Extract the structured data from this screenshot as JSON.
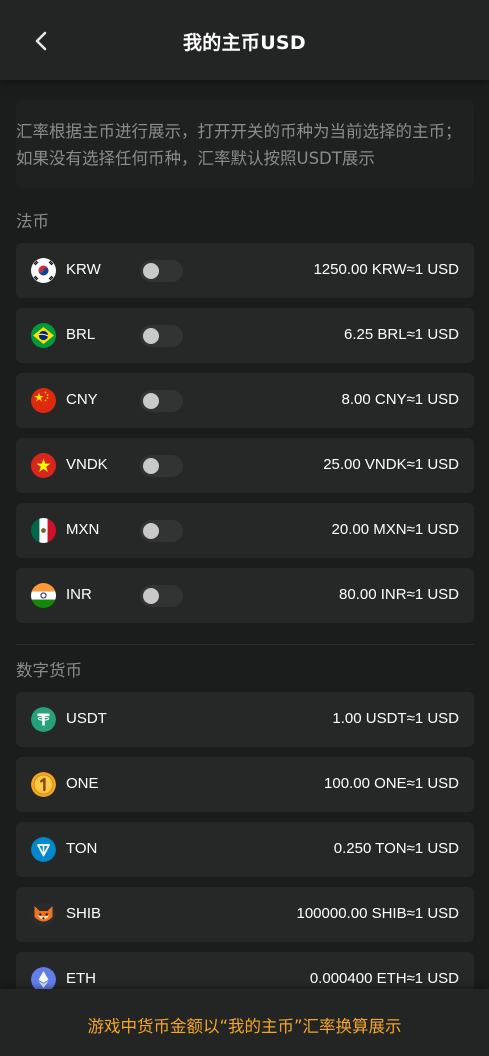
{
  "header": {
    "title": "我的主币USD",
    "back_icon": "chevron-left-icon"
  },
  "description": "汇率根据主币进行展示，打开开关的币种为当前选择的主币；如果没有选择任何币种，汇率默认按照USDT展示",
  "fiat": {
    "label": "法币",
    "items": [
      {
        "code": "KRW",
        "rate": "1250.00 KRW≈1 USD",
        "icon": "korea-flag-icon",
        "enabled": false
      },
      {
        "code": "BRL",
        "rate": "6.25 BRL≈1 USD",
        "icon": "brazil-flag-icon",
        "enabled": false
      },
      {
        "code": "CNY",
        "rate": "8.00 CNY≈1 USD",
        "icon": "china-flag-icon",
        "enabled": false
      },
      {
        "code": "VNDK",
        "rate": "25.00 VNDK≈1 USD",
        "icon": "vietnam-flag-icon",
        "enabled": false
      },
      {
        "code": "MXN",
        "rate": "20.00 MXN≈1 USD",
        "icon": "mexico-flag-icon",
        "enabled": false
      },
      {
        "code": "INR",
        "rate": "80.00 INR≈1 USD",
        "icon": "india-flag-icon",
        "enabled": false
      }
    ]
  },
  "crypto": {
    "label": "数字货币",
    "items": [
      {
        "code": "USDT",
        "rate": "1.00 USDT≈1 USD",
        "icon": "tether-icon",
        "color": "#26a17b"
      },
      {
        "code": "ONE",
        "rate": "100.00 ONE≈1 USD",
        "icon": "one-coin-icon",
        "color": "#f5a623"
      },
      {
        "code": "TON",
        "rate": "0.250 TON≈1 USD",
        "icon": "ton-icon",
        "color": "#0088cc"
      },
      {
        "code": "SHIB",
        "rate": "100000.00 SHIB≈1 USD",
        "icon": "shiba-icon",
        "color": "#f0741e"
      },
      {
        "code": "ETH",
        "rate": "0.000400 ETH≈1 USD",
        "icon": "ethereum-icon",
        "color": "#627eea"
      }
    ]
  },
  "footer": {
    "text": "游戏中货币金额以“我的主币”汇率换算展示"
  }
}
